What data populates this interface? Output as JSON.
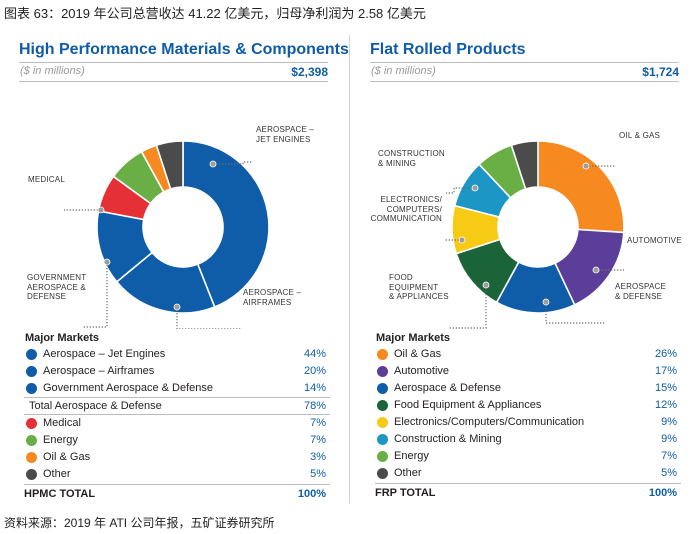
{
  "figure_title": "图表 63：2019 年公司总营收达 41.22 亿美元，归母净利润为 2.58 亿美元",
  "source": "资料来源：2019 年 ATI 公司年报，五矿证券研究所",
  "chart_data": [
    {
      "type": "pie",
      "title": "High Performance Materials & Components",
      "unit_label": "($ in millions)",
      "total": "$2,398",
      "legend_heading": "Major Markets",
      "subtotal": {
        "label": "Total Aerospace & Defense",
        "value": "78%"
      },
      "total_row": {
        "label": "HPMC TOTAL",
        "value": "100%"
      },
      "slices": [
        {
          "label": "Aerospace – Jet Engines",
          "value": 44,
          "pct": "44%",
          "color": "#0f5ca8"
        },
        {
          "label": "Aerospace – Airframes",
          "value": 20,
          "pct": "20%",
          "color": "#0f5ca8"
        },
        {
          "label": "Government Aerospace & Defense",
          "value": 14,
          "pct": "14%",
          "color": "#0f5ca8"
        },
        {
          "label": "Medical",
          "value": 7,
          "pct": "7%",
          "color": "#e53036"
        },
        {
          "label": "Energy",
          "value": 7,
          "pct": "7%",
          "color": "#6aaf45"
        },
        {
          "label": "Oil & Gas",
          "value": 3,
          "pct": "3%",
          "color": "#f68a20"
        },
        {
          "label": "Other",
          "value": 5,
          "pct": "5%",
          "color": "#4b4b4b"
        }
      ],
      "annotations": {
        "jet": [
          "AEROSPACE –",
          "JET ENGINES"
        ],
        "airframes": [
          "AEROSPACE –",
          "AIRFRAMES"
        ],
        "gov": [
          "GOVERNMENT",
          "AEROSPACE &",
          "DEFENSE"
        ],
        "medical": [
          "MEDICAL"
        ]
      }
    },
    {
      "type": "pie",
      "title": "Flat Rolled Products",
      "unit_label": "($ in millions)",
      "total": "$1,724",
      "legend_heading": "Major Markets",
      "total_row": {
        "label": "FRP TOTAL",
        "value": "100%"
      },
      "slices": [
        {
          "label": "Oil & Gas",
          "value": 26,
          "pct": "26%",
          "color": "#f68a20"
        },
        {
          "label": "Automotive",
          "value": 17,
          "pct": "17%",
          "color": "#5b3d9a"
        },
        {
          "label": "Aerospace & Defense",
          "value": 15,
          "pct": "15%",
          "color": "#0f5ca8"
        },
        {
          "label": "Food Equipment & Appliances",
          "value": 12,
          "pct": "12%",
          "color": "#1b6439"
        },
        {
          "label": "Electronics/Computers/Communication",
          "value": 9,
          "pct": "9%",
          "color": "#f7ca16"
        },
        {
          "label": "Construction & Mining",
          "value": 9,
          "pct": "9%",
          "color": "#1b96c5"
        },
        {
          "label": "Energy",
          "value": 7,
          "pct": "7%",
          "color": "#6aaf45"
        },
        {
          "label": "Other",
          "value": 5,
          "pct": "5%",
          "color": "#4b4b4b"
        }
      ],
      "annotations": {
        "oil": [
          "OIL & GAS"
        ],
        "auto": [
          "AUTOMOTIVE"
        ],
        "aero": [
          "AEROSPACE",
          "& DEFENSE"
        ],
        "food": [
          "FOOD",
          "EQUIPMENT",
          "& APPLIANCES"
        ],
        "elec": [
          "ELECTRONICS/",
          "COMPUTERS/",
          "COMMUNICATION"
        ],
        "cons": [
          "CONSTRUCTION",
          "& MINING"
        ]
      }
    }
  ]
}
